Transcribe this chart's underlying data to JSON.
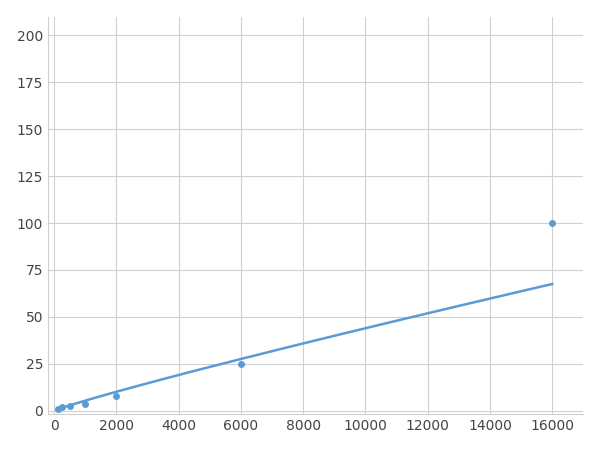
{
  "x": [
    125,
    250,
    500,
    1000,
    2000,
    6000,
    16000
  ],
  "y": [
    1,
    2,
    2.5,
    3.5,
    8,
    25,
    100
  ],
  "line_color": "#5b9bd5",
  "marker_color": "#5b9bd5",
  "marker_size": 5,
  "line_width": 1.8,
  "xlim": [
    -200,
    17000
  ],
  "ylim": [
    -2,
    210
  ],
  "xticks": [
    0,
    2000,
    4000,
    6000,
    8000,
    10000,
    12000,
    14000,
    16000
  ],
  "yticks": [
    0,
    25,
    50,
    75,
    100,
    125,
    150,
    175,
    200
  ],
  "grid_color": "#d0d0d0",
  "background_color": "#ffffff",
  "fig_background_color": "#ffffff"
}
